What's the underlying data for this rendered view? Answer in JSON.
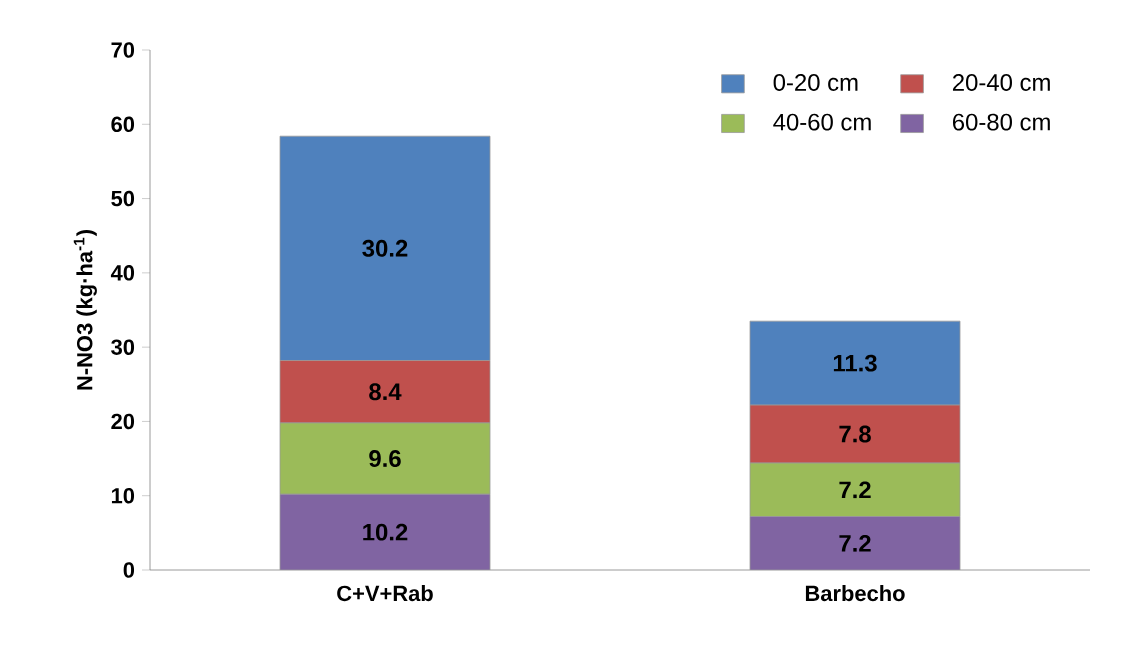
{
  "chart_data": {
    "type": "bar",
    "stacked": true,
    "ylabel": "N-NO3 (kg·ha$^{-1}$)",
    "categories": [
      "C+V+Rab",
      "Barbecho"
    ],
    "series": [
      {
        "name": "60-80 cm",
        "color": "#8064a2",
        "values": [
          10.2,
          7.2
        ]
      },
      {
        "name": "40-60 cm",
        "color": "#9bbb59",
        "values": [
          9.6,
          7.2
        ]
      },
      {
        "name": "20-40 cm",
        "color": "#c0504d",
        "values": [
          8.4,
          7.8
        ]
      },
      {
        "name": "0-20 cm",
        "color": "#4f81bd",
        "values": [
          30.2,
          11.3
        ]
      }
    ],
    "ylim": [
      0,
      70
    ],
    "yticks": [
      0,
      10,
      20,
      30,
      40,
      50,
      60,
      70
    ],
    "data_labels": true,
    "legend": "top right",
    "grid": false
  }
}
